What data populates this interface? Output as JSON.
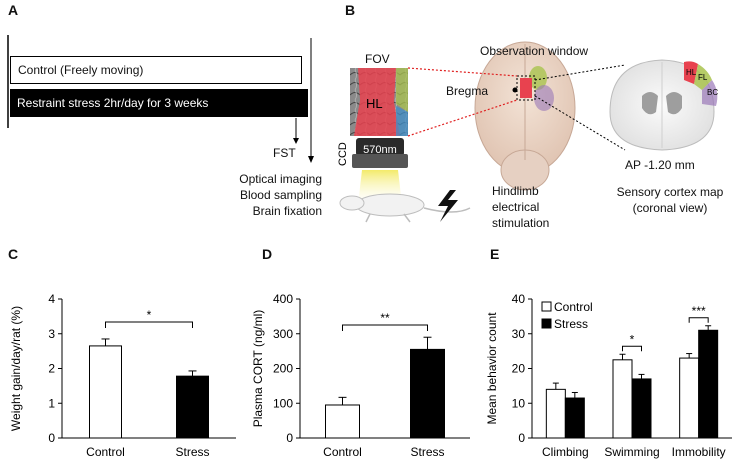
{
  "panels": {
    "a": {
      "label": "A",
      "control_box": "Control (Freely moving)",
      "stress_box": "Restraint stress 2hr/day for 3 weeks",
      "fst": "FST",
      "outcomes": [
        "Optical imaging",
        "Blood sampling",
        "Brain fixation"
      ]
    },
    "b": {
      "label": "B",
      "fov": "FOV",
      "hl": "HL",
      "ccd": "CCD",
      "filter": "570nm",
      "observation_window": "Observation window",
      "bregma": "Bregma",
      "coronal_labels": [
        "HL",
        "FL",
        "BC"
      ],
      "ap": "AP -1.20 mm",
      "map_title": "Sensory cortex  map",
      "map_subtitle": "(coronal view)",
      "stim_lines": [
        "Hindlimb",
        "electrical",
        "stimulation"
      ]
    },
    "c": {
      "label": "C"
    },
    "d": {
      "label": "D"
    },
    "e": {
      "label": "E"
    }
  },
  "colors": {
    "hl_region": "#e8424f",
    "fl_region": "#a9c34e",
    "bc_region": "#9a78b8",
    "bar_control": "#ffffff",
    "bar_stress": "#000000",
    "filter_glow": "#f3ea6a",
    "fov_blue": "#3f8fc9"
  },
  "chart_data": [
    {
      "id": "C",
      "type": "bar",
      "categories": [
        "Control",
        "Stress"
      ],
      "values": [
        2.65,
        1.78
      ],
      "errors": [
        0.2,
        0.15
      ],
      "ylabel": "Weight gain/day/rat (%)",
      "ylim": [
        0,
        4
      ],
      "yticks": [
        0,
        1,
        2,
        3,
        4
      ],
      "significance": "*"
    },
    {
      "id": "D",
      "type": "bar",
      "categories": [
        "Control",
        "Stress"
      ],
      "values": [
        95,
        255
      ],
      "errors": [
        22,
        35
      ],
      "ylabel": "Plasma CORT (ng/ml)",
      "ylim": [
        0,
        400
      ],
      "yticks": [
        0,
        100,
        200,
        300,
        400
      ],
      "significance": "**"
    },
    {
      "id": "E",
      "type": "bar",
      "categories": [
        "Climbing",
        "Swimming",
        "Immobility"
      ],
      "series": [
        {
          "name": "Control",
          "values": [
            14,
            22.5,
            23
          ],
          "errors": [
            1.8,
            1.6,
            1.3
          ]
        },
        {
          "name": "Stress",
          "values": [
            11.5,
            17,
            31
          ],
          "errors": [
            1.6,
            1.3,
            1.3
          ]
        }
      ],
      "ylabel": "Mean behavior count",
      "ylim": [
        0,
        40
      ],
      "yticks": [
        0,
        10,
        20,
        30,
        40
      ],
      "significance": [
        "",
        "*",
        "***"
      ],
      "legend": "top-left"
    }
  ]
}
